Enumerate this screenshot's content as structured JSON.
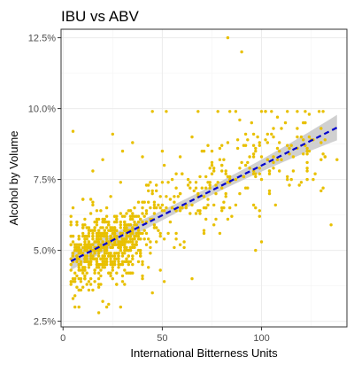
{
  "chart_data": {
    "type": "scatter",
    "title": "IBU vs ABV",
    "xlabel": "International Bitterness Units",
    "ylabel": "Alcohol by Volume",
    "xlim": [
      -1,
      143
    ],
    "ylim": [
      0.023,
      0.128
    ],
    "x_ticks": [
      0,
      50,
      100
    ],
    "x_tick_labels": [
      "0",
      "50",
      "100"
    ],
    "y_ticks": [
      0.025,
      0.05,
      0.075,
      0.1,
      0.125
    ],
    "y_tick_labels": [
      "2.5%",
      "5.0%",
      "7.5%",
      "10.0%",
      "12.5%"
    ],
    "grid": true,
    "legend": "none",
    "colors": {
      "points": "#e8c000",
      "trend": "#0000cc",
      "ribbon": "#c8c8c8",
      "panel_border": "#333333",
      "grid": "#ebebeb"
    },
    "trend_line": {
      "method": "linear regression",
      "style": "dashed",
      "x": [
        4,
        138
      ],
      "y": [
        0.0462,
        0.0933
      ],
      "ci_halfwidth": [
        0.0016,
        0.0045
      ]
    },
    "series": [
      {
        "marker": "point",
        "points": [
          [
            83,
            0.125
          ],
          [
            90,
            0.12
          ],
          [
            5,
            0.092
          ],
          [
            52,
            0.099
          ],
          [
            78,
            0.099
          ],
          [
            84,
            0.099
          ],
          [
            87,
            0.099
          ],
          [
            100,
            0.099
          ],
          [
            102,
            0.099
          ],
          [
            113,
            0.099
          ],
          [
            118,
            0.099
          ],
          [
            68,
            0.099
          ],
          [
            45,
            0.099
          ],
          [
            135,
            0.059
          ],
          [
            138,
            0.082
          ],
          [
            110,
            0.093
          ],
          [
            120,
            0.09
          ],
          [
            95,
            0.095
          ],
          [
            108,
            0.097
          ],
          [
            122,
            0.095
          ],
          [
            92,
            0.087
          ],
          [
            99,
            0.062
          ],
          [
            100,
            0.053
          ],
          [
            97,
            0.05
          ],
          [
            80,
            0.072
          ],
          [
            75,
            0.08
          ],
          [
            70,
            0.085
          ],
          [
            65,
            0.09
          ],
          [
            60,
            0.077
          ],
          [
            55,
            0.075
          ],
          [
            30,
            0.085
          ],
          [
            25,
            0.091
          ],
          [
            35,
            0.088
          ],
          [
            40,
            0.083
          ],
          [
            20,
            0.082
          ],
          [
            15,
            0.078
          ],
          [
            10,
            0.068
          ],
          [
            8,
            0.055
          ],
          [
            6,
            0.05
          ],
          [
            5,
            0.046
          ],
          [
            4,
            0.052
          ],
          [
            8,
            0.04
          ],
          [
            12,
            0.038
          ],
          [
            15,
            0.036
          ],
          [
            20,
            0.032
          ],
          [
            18,
            0.028
          ],
          [
            22,
            0.03
          ],
          [
            27,
            0.038
          ],
          [
            30,
            0.045
          ],
          [
            45,
            0.035
          ],
          [
            35,
            0.042
          ],
          [
            40,
            0.04
          ]
        ]
      }
    ]
  }
}
